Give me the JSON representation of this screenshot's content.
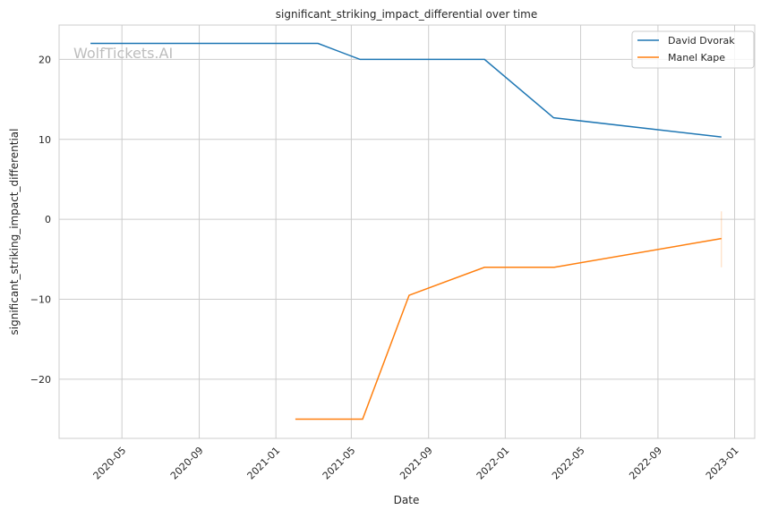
{
  "chart_data": {
    "type": "line",
    "title": "significant_striking_impact_differential over time",
    "xlabel": "Date",
    "ylabel": "significant_striking_impact_differential",
    "watermark": "WolfTickets.AI",
    "xlim": [
      "2020-01-22",
      "2023-02-02"
    ],
    "ylim": [
      -27.4,
      24.3
    ],
    "grid": true,
    "legend_position": "top-right",
    "x_ticks": [
      "2020-05",
      "2020-09",
      "2021-01",
      "2021-05",
      "2021-09",
      "2022-01",
      "2022-05",
      "2022-09",
      "2023-01"
    ],
    "y_ticks": [
      20,
      10,
      0,
      -10,
      -20
    ],
    "y_tick_labels": [
      "20",
      "10",
      "0",
      "−10",
      "−20"
    ],
    "series": [
      {
        "name": "David Dvorak",
        "color": "#1f77b4",
        "x": [
          "2020-03-12",
          "2021-03-09",
          "2021-05-15",
          "2021-11-29",
          "2022-03-19",
          "2022-12-11"
        ],
        "y": [
          22,
          22,
          20,
          20,
          12.7,
          10.3
        ]
      },
      {
        "name": "Manel Kape",
        "color": "#ff7f0e",
        "x": [
          "2021-02-01",
          "2021-05-19",
          "2021-08-01",
          "2021-11-29",
          "2022-03-20",
          "2022-12-11"
        ],
        "y": [
          -25,
          -25,
          -9.5,
          -6,
          -6,
          -2.4
        ],
        "ci_last": [
          -6,
          1
        ]
      }
    ]
  }
}
